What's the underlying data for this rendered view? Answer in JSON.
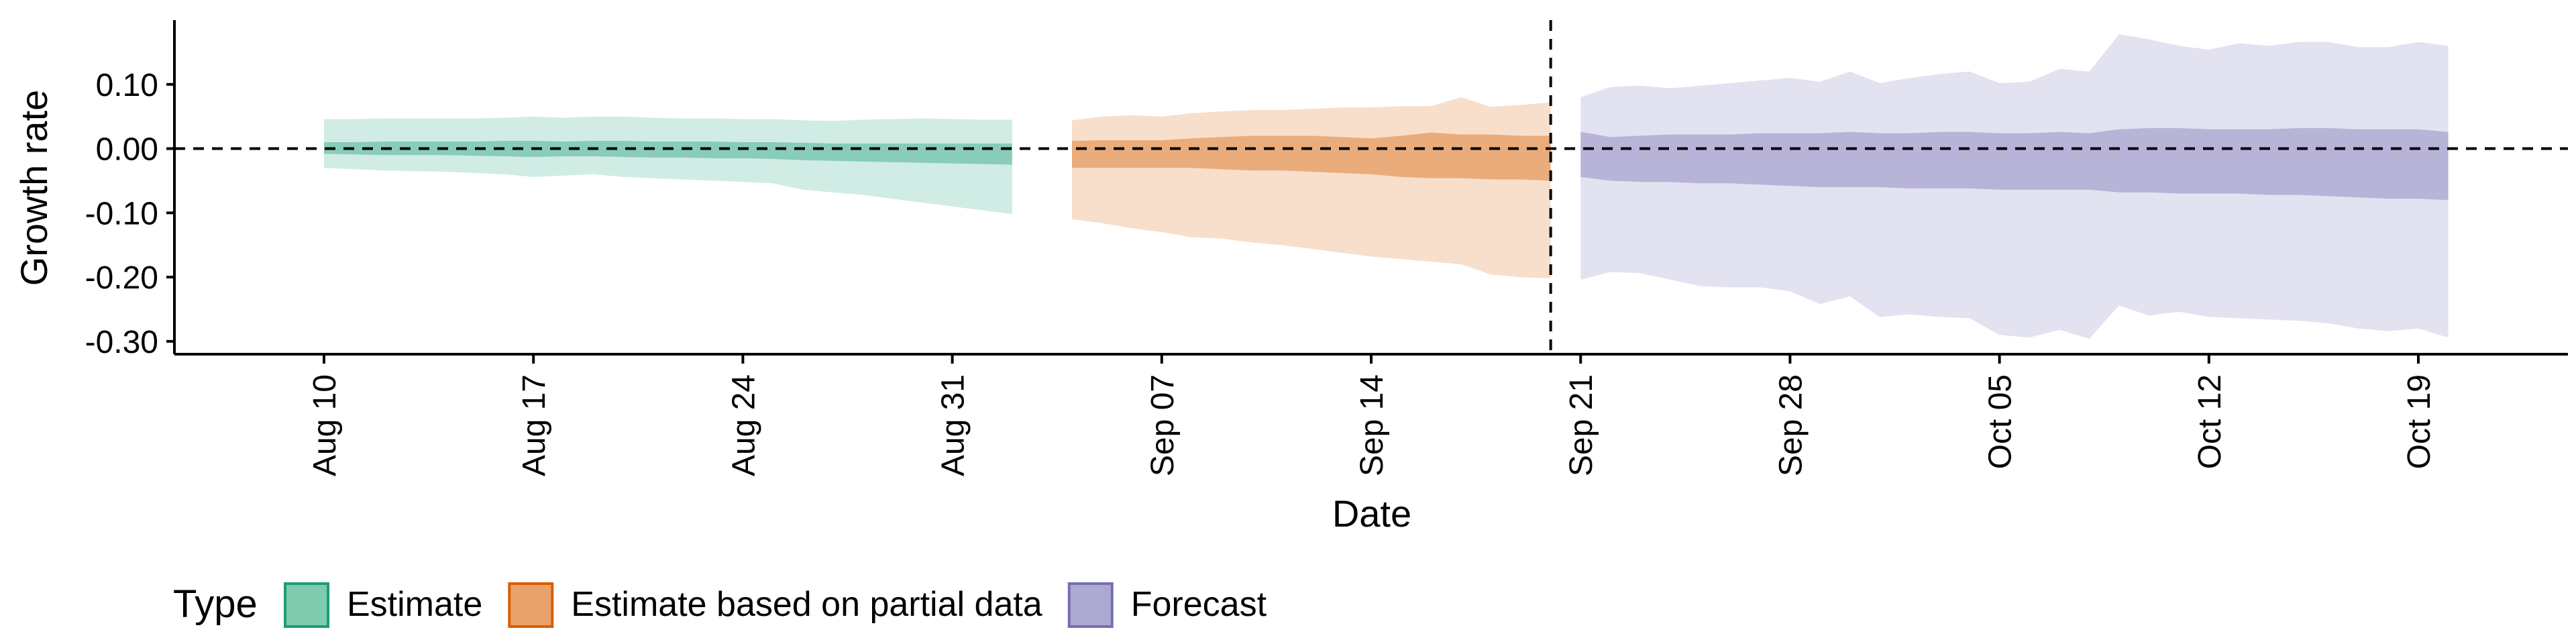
{
  "chart_data": {
    "type": "area",
    "title": "",
    "xlabel": "Date",
    "ylabel": "Growth rate",
    "x_axis": {
      "type": "date",
      "range": [
        "2020-08-05",
        "2020-10-24"
      ],
      "ticks": [
        {
          "date": "2020-08-10",
          "label": "Aug 10"
        },
        {
          "date": "2020-08-17",
          "label": "Aug 17"
        },
        {
          "date": "2020-08-24",
          "label": "Aug 24"
        },
        {
          "date": "2020-08-31",
          "label": "Aug 31"
        },
        {
          "date": "2020-09-07",
          "label": "Sep 07"
        },
        {
          "date": "2020-09-14",
          "label": "Sep 14"
        },
        {
          "date": "2020-09-21",
          "label": "Sep 21"
        },
        {
          "date": "2020-09-28",
          "label": "Sep 28"
        },
        {
          "date": "2020-10-05",
          "label": "Oct 05"
        },
        {
          "date": "2020-10-12",
          "label": "Oct 12"
        },
        {
          "date": "2020-10-19",
          "label": "Oct 19"
        }
      ]
    },
    "y_axis": {
      "range": [
        -0.32,
        0.2
      ],
      "ticks": [
        {
          "value": 0.1,
          "label": "0.10"
        },
        {
          "value": 0.0,
          "label": "0.00"
        },
        {
          "value": -0.1,
          "label": "-0.10"
        },
        {
          "value": -0.2,
          "label": "-0.20"
        },
        {
          "value": -0.3,
          "label": "-0.30"
        }
      ]
    },
    "reference_lines": {
      "horizontal_dashed_y": 0.0,
      "vertical_dashed_date": "2020-09-20"
    },
    "grid": false,
    "legend": {
      "title": "Type",
      "placement": "bottom",
      "entries": [
        {
          "label": "Estimate",
          "fill": "#7fcbae",
          "stroke": "#1b9e77"
        },
        {
          "label": "Estimate based on partial data",
          "fill": "#e9a26b",
          "stroke": "#d95f02"
        },
        {
          "label": "Forecast",
          "fill": "#ada9d0",
          "stroke": "#7570b3"
        }
      ]
    },
    "series": [
      {
        "type": "Estimate",
        "color_outer": "#1b9e77",
        "color_inner": "#1b9e77",
        "dates": [
          "2020-08-10",
          "2020-08-11",
          "2020-08-12",
          "2020-08-13",
          "2020-08-14",
          "2020-08-15",
          "2020-08-16",
          "2020-08-17",
          "2020-08-18",
          "2020-08-19",
          "2020-08-20",
          "2020-08-21",
          "2020-08-22",
          "2020-08-23",
          "2020-08-24",
          "2020-08-25",
          "2020-08-26",
          "2020-08-27",
          "2020-08-28",
          "2020-08-29",
          "2020-08-30",
          "2020-08-31",
          "2020-09-01",
          "2020-09-02"
        ],
        "outer_upper": [
          0.046,
          0.046,
          0.047,
          0.047,
          0.047,
          0.047,
          0.048,
          0.05,
          0.048,
          0.05,
          0.05,
          0.048,
          0.047,
          0.047,
          0.046,
          0.046,
          0.044,
          0.043,
          0.045,
          0.046,
          0.047,
          0.046,
          0.045,
          0.045
        ],
        "outer_lower": [
          -0.03,
          -0.032,
          -0.034,
          -0.035,
          -0.036,
          -0.038,
          -0.04,
          -0.044,
          -0.042,
          -0.04,
          -0.044,
          -0.046,
          -0.048,
          -0.05,
          -0.052,
          -0.054,
          -0.064,
          -0.068,
          -0.072,
          -0.078,
          -0.084,
          -0.09,
          -0.096,
          -0.102
        ],
        "inner_upper": [
          0.01,
          0.01,
          0.011,
          0.011,
          0.011,
          0.011,
          0.012,
          0.012,
          0.011,
          0.012,
          0.012,
          0.011,
          0.011,
          0.011,
          0.01,
          0.01,
          0.009,
          0.008,
          0.008,
          0.008,
          0.008,
          0.008,
          0.008,
          0.008
        ],
        "inner_lower": [
          -0.008,
          -0.009,
          -0.01,
          -0.01,
          -0.01,
          -0.011,
          -0.012,
          -0.013,
          -0.012,
          -0.012,
          -0.013,
          -0.014,
          -0.014,
          -0.015,
          -0.015,
          -0.016,
          -0.018,
          -0.019,
          -0.02,
          -0.021,
          -0.022,
          -0.023,
          -0.024,
          -0.025
        ]
      },
      {
        "type": "Estimate based on partial data",
        "color_outer": "#d95f02",
        "color_inner": "#d95f02",
        "dates": [
          "2020-09-04",
          "2020-09-05",
          "2020-09-06",
          "2020-09-07",
          "2020-09-08",
          "2020-09-09",
          "2020-09-10",
          "2020-09-11",
          "2020-09-12",
          "2020-09-13",
          "2020-09-14",
          "2020-09-15",
          "2020-09-16",
          "2020-09-17",
          "2020-09-18",
          "2020-09-19",
          "2020-09-20"
        ],
        "outer_upper": [
          0.044,
          0.05,
          0.052,
          0.05,
          0.055,
          0.058,
          0.06,
          0.06,
          0.062,
          0.064,
          0.064,
          0.066,
          0.066,
          0.08,
          0.065,
          0.068,
          0.072
        ],
        "outer_lower": [
          -0.11,
          -0.116,
          -0.124,
          -0.13,
          -0.138,
          -0.14,
          -0.146,
          -0.15,
          -0.156,
          -0.162,
          -0.168,
          -0.172,
          -0.176,
          -0.18,
          -0.196,
          -0.2,
          -0.202
        ],
        "inner_upper": [
          0.012,
          0.013,
          0.013,
          0.013,
          0.016,
          0.018,
          0.02,
          0.02,
          0.02,
          0.018,
          0.016,
          0.02,
          0.025,
          0.022,
          0.022,
          0.02,
          0.02
        ],
        "inner_lower": [
          -0.03,
          -0.03,
          -0.03,
          -0.03,
          -0.03,
          -0.032,
          -0.034,
          -0.034,
          -0.036,
          -0.038,
          -0.04,
          -0.044,
          -0.046,
          -0.046,
          -0.048,
          -0.048,
          -0.05
        ]
      },
      {
        "type": "Forecast",
        "color_outer": "#7570b3",
        "color_inner": "#7570b3",
        "dates": [
          "2020-09-21",
          "2020-09-22",
          "2020-09-23",
          "2020-09-24",
          "2020-09-25",
          "2020-09-26",
          "2020-09-27",
          "2020-09-28",
          "2020-09-29",
          "2020-09-30",
          "2020-10-01",
          "2020-10-02",
          "2020-10-03",
          "2020-10-04",
          "2020-10-05",
          "2020-10-06",
          "2020-10-07",
          "2020-10-08",
          "2020-10-09",
          "2020-10-10",
          "2020-10-11",
          "2020-10-12",
          "2020-10-13",
          "2020-10-14",
          "2020-10-15",
          "2020-10-16",
          "2020-10-17",
          "2020-10-18",
          "2020-10-19",
          "2020-10-20"
        ],
        "outer_upper": [
          0.08,
          0.096,
          0.098,
          0.094,
          0.098,
          0.102,
          0.106,
          0.11,
          0.104,
          0.12,
          0.102,
          0.11,
          0.116,
          0.12,
          0.102,
          0.104,
          0.124,
          0.12,
          0.178,
          0.17,
          0.16,
          0.154,
          0.164,
          0.16,
          0.166,
          0.166,
          0.158,
          0.158,
          0.166,
          0.16
        ],
        "outer_lower": [
          -0.204,
          -0.192,
          -0.194,
          -0.204,
          -0.214,
          -0.216,
          -0.216,
          -0.222,
          -0.242,
          -0.23,
          -0.262,
          -0.258,
          -0.262,
          -0.264,
          -0.29,
          -0.294,
          -0.282,
          -0.296,
          -0.244,
          -0.26,
          -0.254,
          -0.262,
          -0.264,
          -0.266,
          -0.268,
          -0.272,
          -0.28,
          -0.284,
          -0.28,
          -0.294
        ],
        "inner_upper": [
          0.026,
          0.018,
          0.02,
          0.022,
          0.022,
          0.022,
          0.024,
          0.024,
          0.024,
          0.026,
          0.024,
          0.024,
          0.026,
          0.026,
          0.024,
          0.024,
          0.026,
          0.024,
          0.03,
          0.032,
          0.032,
          0.03,
          0.03,
          0.03,
          0.032,
          0.032,
          0.03,
          0.03,
          0.03,
          0.026
        ],
        "inner_lower": [
          -0.044,
          -0.05,
          -0.052,
          -0.052,
          -0.054,
          -0.054,
          -0.056,
          -0.058,
          -0.06,
          -0.06,
          -0.06,
          -0.062,
          -0.062,
          -0.062,
          -0.064,
          -0.064,
          -0.064,
          -0.064,
          -0.068,
          -0.068,
          -0.07,
          -0.07,
          -0.07,
          -0.072,
          -0.072,
          -0.074,
          -0.076,
          -0.078,
          -0.078,
          -0.08
        ]
      }
    ]
  }
}
